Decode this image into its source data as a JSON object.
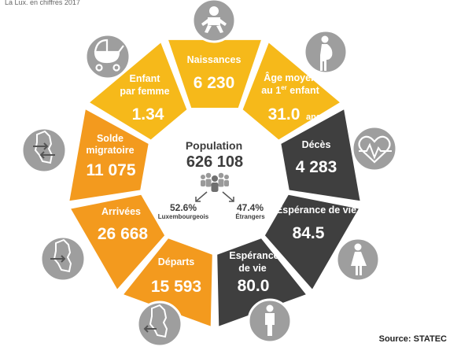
{
  "top_text": "La Lux. en chiffres 2017",
  "center": {
    "title": "Population",
    "value": "626 108",
    "left_pct": "52.6%",
    "left_label": "Luxembourgeois",
    "right_pct": "47.4%",
    "right_label": "Étrangers"
  },
  "segments": [
    {
      "title": "Naissances",
      "value": "6 230",
      "color": "#f6b91a",
      "icon": "baby-icon"
    },
    {
      "title": "Âge moyen au 1er enfant",
      "title_line1": "Âge moyen",
      "title_line2": "au 1",
      "title_sup": "er",
      "title_line2_end": " enfant",
      "value": "31.0",
      "unit": "ans",
      "color": "#f6b91a",
      "icon": "pregnant-woman-icon"
    },
    {
      "title": "Décès",
      "value": "4 283",
      "color": "#3f3f3f",
      "icon": "heartbeat-icon"
    },
    {
      "title": "Espérance de vie",
      "value": "84.5",
      "color": "#3f3f3f",
      "icon": "woman-icon"
    },
    {
      "title_line1": "Espérance",
      "title_line2": "de vie",
      "value": "80.0",
      "color": "#3f3f3f",
      "icon": "man-icon"
    },
    {
      "title": "Départs",
      "value": "15 593",
      "color": "#f39a1e",
      "icon": "luxembourg-departures-icon"
    },
    {
      "title": "Arrivées",
      "value": "26 668",
      "color": "#f39a1e",
      "icon": "luxembourg-arrivals-icon"
    },
    {
      "title_line1": "Solde",
      "title_line2": "migratoire",
      "value": "11 075",
      "color": "#f39a1e",
      "icon": "luxembourg-migration-icon"
    },
    {
      "title_line1": "Enfant",
      "title_line2": "par femme",
      "value": "1.34",
      "color": "#f6b91a",
      "icon": "stroller-icon"
    }
  ],
  "source": "Source: STATEC",
  "colors": {
    "icon_circle": "#9e9e9e",
    "icon_border": "#ffffff",
    "text_dark": "#3d3d3d"
  }
}
